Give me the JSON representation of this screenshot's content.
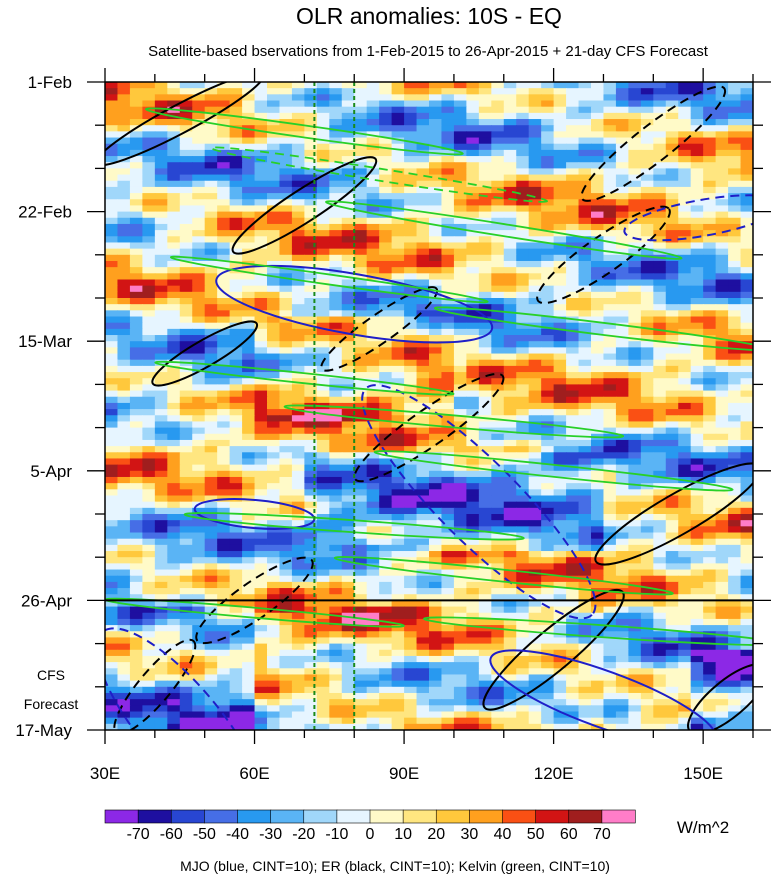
{
  "chart_data": {
    "type": "heatmap",
    "title": "OLR anomalies: 10S - EQ",
    "subtitle": "Satellite-based bservations from 1-Feb-2015 to 26-Apr-2015 + 21-day CFS Forecast",
    "x_axis": {
      "range": [
        30,
        160
      ],
      "ticks": [
        {
          "value": 30,
          "label": "30E"
        },
        {
          "value": 60,
          "label": "60E"
        },
        {
          "value": 90,
          "label": "90E"
        },
        {
          "value": 120,
          "label": "120E"
        },
        {
          "value": 150,
          "label": "150E"
        }
      ]
    },
    "y_axis": {
      "range": [
        "1-Feb-2015",
        "17-May-2015"
      ],
      "direction": "downward",
      "ticks": [
        {
          "value": "2015-02-01",
          "label": "1-Feb"
        },
        {
          "value": "2015-02-22",
          "label": "22-Feb"
        },
        {
          "value": "2015-03-15",
          "label": "15-Mar"
        },
        {
          "value": "2015-04-05",
          "label": "5-Apr"
        },
        {
          "value": "2015-04-26",
          "label": "26-Apr"
        },
        {
          "value": "2015-05-17",
          "label": "17-May"
        }
      ]
    },
    "forecast_start": "2015-04-26",
    "forecast_label_line1": "CFS",
    "forecast_label_line2": "Forecast",
    "reference_longitudes": [
      72,
      80
    ],
    "reference_line_color": "#1a8a1a",
    "colorbar": {
      "units": "W/m^2",
      "levels": [
        -70,
        -60,
        -50,
        -40,
        -30,
        -20,
        -10,
        0,
        10,
        20,
        30,
        40,
        50,
        60,
        70
      ],
      "labels": [
        "-70",
        "-60",
        "-50",
        "-40",
        "-30",
        "-20",
        "-10",
        "0",
        "10",
        "20",
        "30",
        "40",
        "50",
        "60",
        "70"
      ],
      "colors": [
        "#8c28e6",
        "#1e0fa0",
        "#2846d2",
        "#466ee6",
        "#2899f0",
        "#5ab4f5",
        "#a0d7fa",
        "#e6f5ff",
        "#fffac8",
        "#ffe680",
        "#ffc83c",
        "#ffa01e",
        "#fa5014",
        "#d21414",
        "#a01e1e",
        "#ff7dc8"
      ]
    },
    "contour_legend": "MJO (blue, CINT=10); ER (black, CINT=10); Kelvin (green, CINT=10)",
    "contour_colors": {
      "mjo": "#1f1fc8",
      "er": "#000000",
      "kelvin": "#28d028"
    }
  }
}
